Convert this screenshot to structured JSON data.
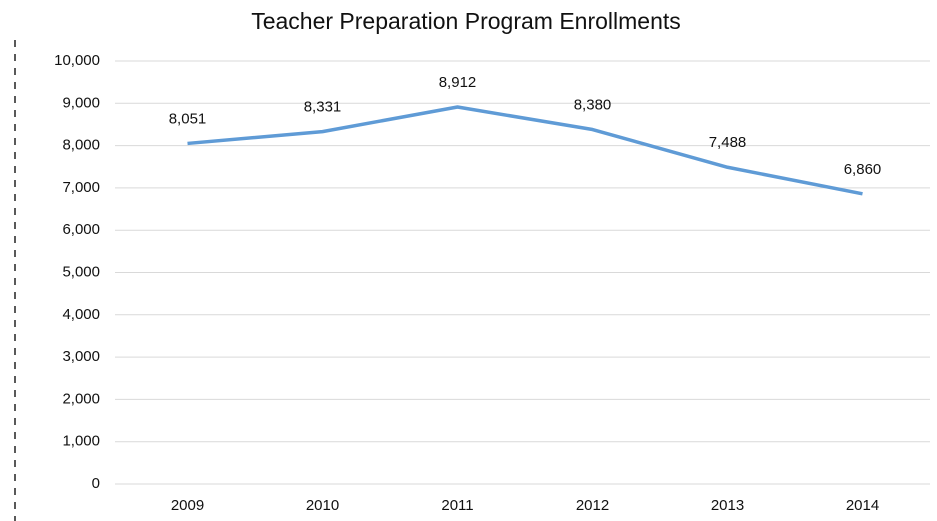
{
  "chart_data": {
    "type": "line",
    "title": "Teacher Preparation Program Enrollments",
    "categories": [
      "2009",
      "2010",
      "2011",
      "2012",
      "2013",
      "2014"
    ],
    "series": [
      {
        "color": "#5f9bd6",
        "values": [
          8051,
          8331,
          8912,
          8380,
          7488,
          6860
        ],
        "value_labels": [
          "8,051",
          "8,331",
          "8,912",
          "8,380",
          "7,488",
          "6,860"
        ]
      }
    ],
    "ylim": [
      0,
      10000
    ],
    "yticks": [
      0,
      {
        "value": 1000,
        "label": "1,000"
      },
      {
        "value": 2000,
        "label": "2,000"
      },
      {
        "value": 3000,
        "label": "3,000"
      },
      {
        "value": 4000,
        "label": "4,000"
      },
      {
        "value": 5000,
        "label": "5,000"
      },
      {
        "value": 6000,
        "label": "6,000"
      },
      {
        "value": 7000,
        "label": "7,000"
      },
      {
        "value": 8000,
        "label": "8,000"
      },
      {
        "value": 9000,
        "label": "9,000"
      },
      {
        "value": 10000,
        "label": "10,000"
      }
    ],
    "grid": true
  }
}
